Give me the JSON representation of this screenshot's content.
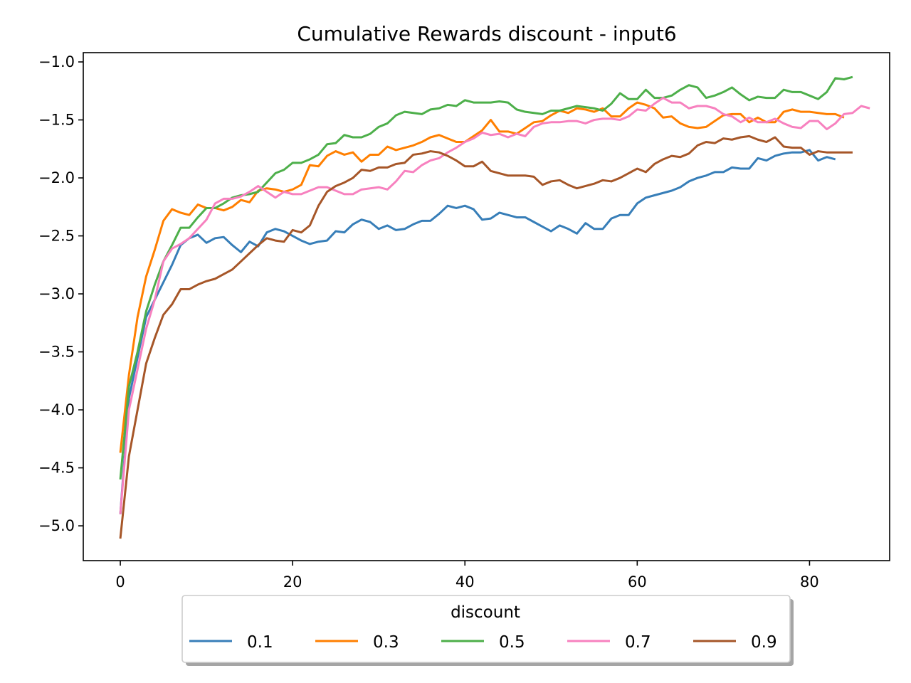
{
  "chart_data": {
    "type": "line",
    "title": "Cumulative Rewards discount - input6",
    "xlabel": "",
    "ylabel": "",
    "xlim": [
      -4.3,
      89.3
    ],
    "ylim": [
      -5.3,
      -0.92
    ],
    "xticks": [
      0,
      20,
      40,
      60,
      80
    ],
    "yticks": [
      -1.0,
      -1.5,
      -2.0,
      -2.5,
      -3.0,
      -3.5,
      -4.0,
      -4.5,
      -5.0
    ],
    "ytick_labels": [
      "−1.0",
      "−1.5",
      "−2.0",
      "−2.5",
      "−3.0",
      "−3.5",
      "−4.0",
      "−4.5",
      "−5.0"
    ],
    "grid": false,
    "legend": {
      "title": "discount",
      "placement": "bottom-center outside"
    },
    "series": [
      {
        "name": "0.1",
        "color": "#377eb8",
        "values": [
          -4.9,
          -3.9,
          -3.55,
          -3.2,
          -3.05,
          -2.9,
          -2.75,
          -2.58,
          -2.52,
          -2.49,
          -2.56,
          -2.52,
          -2.51,
          -2.58,
          -2.64,
          -2.55,
          -2.59,
          -2.47,
          -2.44,
          -2.46,
          -2.5,
          -2.54,
          -2.57,
          -2.55,
          -2.54,
          -2.46,
          -2.47,
          -2.4,
          -2.36,
          -2.38,
          -2.44,
          -2.41,
          -2.45,
          -2.44,
          -2.4,
          -2.37,
          -2.37,
          -2.31,
          -2.24,
          -2.26,
          -2.24,
          -2.27,
          -2.36,
          -2.35,
          -2.3,
          -2.32,
          -2.34,
          -2.34,
          -2.38,
          -2.42,
          -2.46,
          -2.41,
          -2.44,
          -2.48,
          -2.39,
          -2.44,
          -2.44,
          -2.35,
          -2.32,
          -2.32,
          -2.22,
          -2.17,
          -2.15,
          -2.13,
          -2.11,
          -2.08,
          -2.03,
          -2.0,
          -1.98,
          -1.95,
          -1.95,
          -1.91,
          -1.92,
          -1.92,
          -1.83,
          -1.85,
          -1.81,
          -1.79,
          -1.78,
          -1.78,
          -1.76,
          -1.85,
          -1.82,
          -1.84
        ]
      },
      {
        "name": "0.3",
        "color": "#ff7f00",
        "values": [
          -4.37,
          -3.7,
          -3.2,
          -2.85,
          -2.62,
          -2.37,
          -2.27,
          -2.3,
          -2.32,
          -2.23,
          -2.26,
          -2.26,
          -2.28,
          -2.25,
          -2.19,
          -2.21,
          -2.11,
          -2.09,
          -2.1,
          -2.12,
          -2.1,
          -2.06,
          -1.89,
          -1.9,
          -1.81,
          -1.77,
          -1.8,
          -1.78,
          -1.86,
          -1.8,
          -1.8,
          -1.73,
          -1.76,
          -1.74,
          -1.72,
          -1.69,
          -1.65,
          -1.63,
          -1.66,
          -1.69,
          -1.69,
          -1.64,
          -1.59,
          -1.5,
          -1.6,
          -1.6,
          -1.62,
          -1.57,
          -1.52,
          -1.51,
          -1.46,
          -1.42,
          -1.44,
          -1.4,
          -1.41,
          -1.43,
          -1.4,
          -1.47,
          -1.47,
          -1.4,
          -1.35,
          -1.37,
          -1.4,
          -1.48,
          -1.47,
          -1.53,
          -1.56,
          -1.57,
          -1.56,
          -1.51,
          -1.46,
          -1.45,
          -1.45,
          -1.52,
          -1.48,
          -1.52,
          -1.52,
          -1.43,
          -1.41,
          -1.43,
          -1.43,
          -1.44,
          -1.45,
          -1.45,
          -1.48
        ]
      },
      {
        "name": "0.5",
        "color": "#4daf4a",
        "values": [
          -4.6,
          -3.8,
          -3.5,
          -3.15,
          -2.92,
          -2.72,
          -2.58,
          -2.43,
          -2.43,
          -2.34,
          -2.26,
          -2.26,
          -2.22,
          -2.17,
          -2.15,
          -2.14,
          -2.12,
          -2.04,
          -1.96,
          -1.93,
          -1.87,
          -1.87,
          -1.84,
          -1.8,
          -1.71,
          -1.7,
          -1.63,
          -1.65,
          -1.65,
          -1.62,
          -1.56,
          -1.53,
          -1.46,
          -1.43,
          -1.44,
          -1.45,
          -1.41,
          -1.4,
          -1.37,
          -1.38,
          -1.33,
          -1.35,
          -1.35,
          -1.35,
          -1.34,
          -1.35,
          -1.41,
          -1.43,
          -1.44,
          -1.45,
          -1.42,
          -1.42,
          -1.4,
          -1.38,
          -1.39,
          -1.4,
          -1.42,
          -1.36,
          -1.27,
          -1.32,
          -1.32,
          -1.24,
          -1.31,
          -1.31,
          -1.29,
          -1.24,
          -1.2,
          -1.22,
          -1.31,
          -1.29,
          -1.26,
          -1.22,
          -1.28,
          -1.33,
          -1.3,
          -1.31,
          -1.31,
          -1.24,
          -1.26,
          -1.26,
          -1.29,
          -1.32,
          -1.26,
          -1.14,
          -1.15,
          -1.13
        ]
      },
      {
        "name": "0.7",
        "color": "#f781bf",
        "values": [
          -4.9,
          -4.0,
          -3.65,
          -3.3,
          -3.05,
          -2.72,
          -2.61,
          -2.57,
          -2.52,
          -2.44,
          -2.36,
          -2.22,
          -2.18,
          -2.18,
          -2.16,
          -2.12,
          -2.07,
          -2.12,
          -2.17,
          -2.12,
          -2.14,
          -2.14,
          -2.11,
          -2.08,
          -2.08,
          -2.11,
          -2.14,
          -2.14,
          -2.1,
          -2.09,
          -2.08,
          -2.1,
          -2.03,
          -1.94,
          -1.95,
          -1.89,
          -1.85,
          -1.83,
          -1.78,
          -1.74,
          -1.69,
          -1.66,
          -1.61,
          -1.63,
          -1.62,
          -1.65,
          -1.62,
          -1.64,
          -1.56,
          -1.53,
          -1.52,
          -1.52,
          -1.51,
          -1.51,
          -1.53,
          -1.5,
          -1.49,
          -1.49,
          -1.5,
          -1.47,
          -1.41,
          -1.42,
          -1.36,
          -1.31,
          -1.35,
          -1.35,
          -1.4,
          -1.38,
          -1.38,
          -1.4,
          -1.45,
          -1.47,
          -1.52,
          -1.48,
          -1.52,
          -1.52,
          -1.49,
          -1.53,
          -1.56,
          -1.57,
          -1.51,
          -1.51,
          -1.58,
          -1.53,
          -1.45,
          -1.44,
          -1.38,
          -1.4
        ]
      },
      {
        "name": "0.9",
        "color": "#a65628",
        "values": [
          -5.11,
          -4.4,
          -4.0,
          -3.6,
          -3.38,
          -3.18,
          -3.09,
          -2.96,
          -2.96,
          -2.92,
          -2.89,
          -2.87,
          -2.83,
          -2.79,
          -2.72,
          -2.65,
          -2.58,
          -2.52,
          -2.54,
          -2.55,
          -2.45,
          -2.47,
          -2.41,
          -2.24,
          -2.12,
          -2.07,
          -2.04,
          -2.0,
          -1.93,
          -1.94,
          -1.91,
          -1.91,
          -1.88,
          -1.87,
          -1.8,
          -1.79,
          -1.77,
          -1.78,
          -1.81,
          -1.85,
          -1.9,
          -1.9,
          -1.86,
          -1.94,
          -1.96,
          -1.98,
          -1.98,
          -1.98,
          -1.99,
          -2.06,
          -2.03,
          -2.02,
          -2.06,
          -2.09,
          -2.07,
          -2.05,
          -2.02,
          -2.03,
          -2.0,
          -1.96,
          -1.92,
          -1.95,
          -1.88,
          -1.84,
          -1.81,
          -1.82,
          -1.79,
          -1.72,
          -1.69,
          -1.7,
          -1.66,
          -1.67,
          -1.65,
          -1.64,
          -1.67,
          -1.69,
          -1.65,
          -1.73,
          -1.74,
          -1.74,
          -1.8,
          -1.77,
          -1.78,
          -1.78,
          -1.78,
          -1.78
        ]
      }
    ]
  }
}
